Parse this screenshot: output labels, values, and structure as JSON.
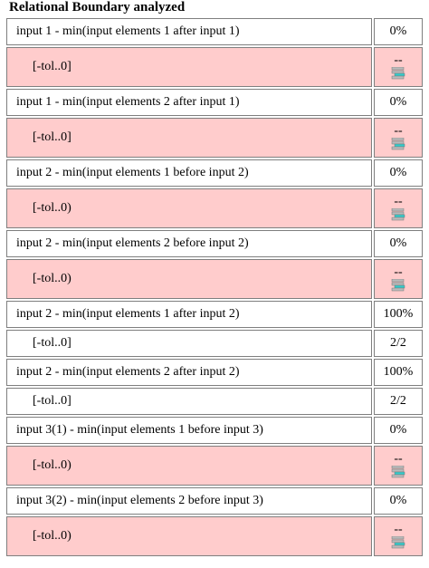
{
  "title": "Relational Boundary analyzed",
  "rows": [
    {
      "label": "input 1 - min(input elements 1 after input 1)",
      "value": "0%",
      "tolerance": "[-tol..0]",
      "result": "--",
      "background": "#ffcccc"
    },
    {
      "label": "input 1 - min(input elements 2 after input 1)",
      "value": "0%",
      "tolerance": "[-tol..0]",
      "result": "--",
      "background": "#ffcccc"
    },
    {
      "label": "input 2 - min(input elements 1 before input 2)",
      "value": "0%",
      "tolerance": "[-tol..0)",
      "result": "--",
      "background": "#ffcccc"
    },
    {
      "label": "input 2 - min(input elements 2 before input 2)",
      "value": "0%",
      "tolerance": "[-tol..0)",
      "result": "--",
      "background": "#ffcccc"
    },
    {
      "label": "input 2 - min(input elements 1 after input 2)",
      "value": "100%",
      "tolerance": "[-tol..0]",
      "result": "2/2",
      "background": "#ffffff"
    },
    {
      "label": "input 2 - min(input elements 2 after input 2)",
      "value": "100%",
      "tolerance": "[-tol..0]",
      "result": "2/2",
      "background": "#ffffff"
    },
    {
      "label": "input 3(1) - min(input elements 1 before input 3)",
      "value": "0%",
      "tolerance": "[-tol..0)",
      "result": "--",
      "background": "#ffcccc"
    },
    {
      "label": "input 3(2) - min(input elements 2 before input 3)",
      "value": "0%",
      "tolerance": "[-tol..0)",
      "result": "--",
      "background": "#ffcccc"
    }
  ]
}
